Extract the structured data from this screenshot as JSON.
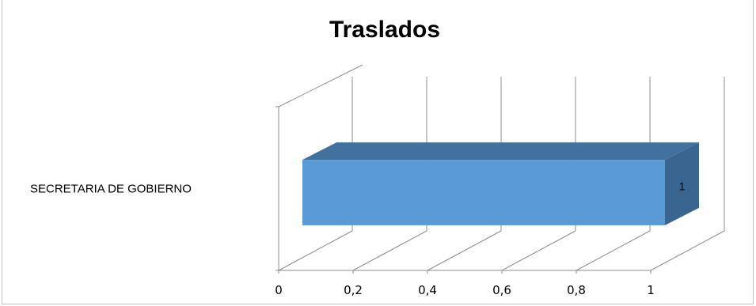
{
  "chart_data": {
    "type": "bar",
    "orientation": "horizontal",
    "three_d": true,
    "title": "Traslados",
    "categories": [
      "SECRETARIA DE GOBIERNO"
    ],
    "values": [
      1
    ],
    "data_labels": [
      "1"
    ],
    "xlim": [
      0,
      1
    ],
    "x_ticks": [
      0,
      0.2,
      0.4,
      0.6,
      0.8,
      1
    ],
    "x_tick_labels": [
      "0",
      "0,2",
      "0,4",
      "0,6",
      "0,8",
      "1"
    ],
    "grid": true,
    "legend": "none",
    "colors": {
      "bar_front": "#5b9bd5",
      "bar_top": "#41719c",
      "bar_side": "#3a6590",
      "grid": "#8c8c8c"
    }
  }
}
